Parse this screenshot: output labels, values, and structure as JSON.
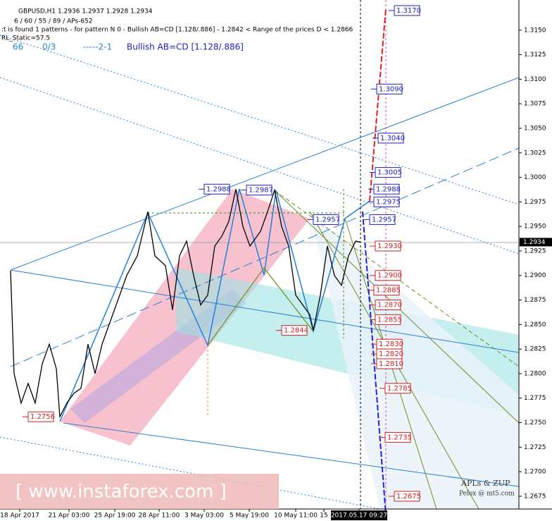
{
  "header": {
    "symbol_line": "GBPUSD,H1  1.2936 1.2937 1.2928 1.2934",
    "settings_line": "6 / 60 / 55 / 89 / APs-652",
    "pattern_line": ":t is found 1 patterns  -  for pattern N 0 - Bullish AB=CD [1.128/.886] - 1.2842 < Range of the prices D < 1.2866",
    "static_line": "RL_Static=57.5",
    "count": "66",
    "ratio": "0/3",
    "step": "-----2-1",
    "pattern_name": "Bullish AB=CD [1.128/.886]"
  },
  "watermark": "[ www.instaforex.com ]",
  "footer": {
    "brand": "APLs & ZUP",
    "credit": "Pelox @ mt5.com"
  },
  "chart_data": {
    "type": "line",
    "series": [
      {
        "name": "GBPUSD",
        "color": "#000000",
        "x": [
          15,
          20,
          30,
          40,
          50,
          60,
          70,
          80,
          85,
          95,
          105,
          115,
          125,
          135,
          145,
          160,
          170,
          180,
          195,
          210,
          220,
          235,
          245,
          255,
          265,
          275,
          285,
          295,
          305,
          315,
          325,
          335,
          345,
          355,
          370,
          380,
          390,
          400,
          410,
          420,
          430,
          440,
          445,
          455,
          465,
          475,
          485,
          495,
          505,
          512
        ],
        "values": [
          1.2905,
          1.28,
          1.277,
          1.279,
          1.277,
          1.281,
          1.283,
          1.2805,
          1.2756,
          1.277,
          1.278,
          1.2785,
          1.283,
          1.28,
          1.283,
          1.286,
          1.288,
          1.29,
          1.292,
          1.2965,
          1.292,
          1.291,
          1.2865,
          1.292,
          1.2935,
          1.29,
          1.287,
          1.288,
          1.293,
          1.294,
          1.2955,
          1.2988,
          1.295,
          1.293,
          1.2945,
          1.2965,
          1.2987,
          1.295,
          1.293,
          1.288,
          1.287,
          1.286,
          1.2844,
          1.288,
          1.293,
          1.29,
          1.289,
          1.292,
          1.2935,
          1.2934
        ]
      }
    ],
    "current_price": {
      "value": 1.2934,
      "label": "1.2934"
    },
    "xlim": [
      0,
      737
    ],
    "xticks": [
      {
        "value": 28,
        "label": "18 Apr 2017"
      },
      {
        "value": 98,
        "label": "21 Apr 03:00"
      },
      {
        "value": 163,
        "label": "25 Apr 19:00"
      },
      {
        "value": 226,
        "label": "28 Apr 11:00"
      },
      {
        "value": 290,
        "label": "3 May 03:00"
      },
      {
        "value": 354,
        "label": "5 May 19:00"
      },
      {
        "value": 420,
        "label": "10 May 11:00"
      },
      {
        "value": 460,
        "label": "15"
      },
      {
        "value": 510,
        "label": "2017.05.17 09:27"
      }
    ],
    "ylim": [
      1.2662,
      1.3175
    ],
    "yticks": [
      {
        "value": 1.2675,
        "label": "1.2675"
      },
      {
        "value": 1.27,
        "label": "1.2700"
      },
      {
        "value": 1.2725,
        "label": "1.2725"
      },
      {
        "value": 1.275,
        "label": "1.2750"
      },
      {
        "value": 1.2775,
        "label": "1.2775"
      },
      {
        "value": 1.28,
        "label": "1.2800"
      },
      {
        "value": 1.2825,
        "label": "1.2825"
      },
      {
        "value": 1.285,
        "label": "1.2850"
      },
      {
        "value": 1.2875,
        "label": "1.2875"
      },
      {
        "value": 1.29,
        "label": "1.2900"
      },
      {
        "value": 1.2925,
        "label": "1.2925"
      },
      {
        "value": 1.295,
        "label": "1.2950"
      },
      {
        "value": 1.2975,
        "label": "1.2975"
      },
      {
        "value": 1.3,
        "label": "1.3000"
      },
      {
        "value": 1.3025,
        "label": "1.3025"
      },
      {
        "value": 1.305,
        "label": "1.3050"
      },
      {
        "value": 1.3075,
        "label": "1.3075"
      },
      {
        "value": 1.31,
        "label": "1.3100"
      },
      {
        "value": 1.3125,
        "label": "1.3125"
      },
      {
        "value": 1.315,
        "label": "1.3150"
      }
    ],
    "levels": [
      {
        "value": 1.317,
        "label": "1.3170",
        "x": 560,
        "color": "#2020c0"
      },
      {
        "value": 1.309,
        "label": "1.3090",
        "x": 535,
        "color": "#2020c0"
      },
      {
        "value": 1.304,
        "label": "1.3040",
        "x": 537,
        "color": "#2020c0"
      },
      {
        "value": 1.3005,
        "label": "1.3005",
        "x": 533,
        "color": "#2020c0"
      },
      {
        "value": 1.2988,
        "label": "1.2988",
        "x": 531,
        "color": "#2020c0"
      },
      {
        "value": 1.2975,
        "label": "1.2975",
        "x": 531,
        "color": "#2020c0"
      },
      {
        "value": 1.2957,
        "label": "1.2957",
        "x": 525,
        "color": "#2020c0"
      },
      {
        "value": 1.293,
        "label": "1.2930",
        "x": 533,
        "color": "#d02020"
      },
      {
        "value": 1.29,
        "label": "1.2900",
        "x": 533,
        "color": "#d02020"
      },
      {
        "value": 1.2885,
        "label": "1.2885",
        "x": 531,
        "color": "#d02020"
      },
      {
        "value": 1.287,
        "label": "1.2870",
        "x": 533,
        "color": "#d02020"
      },
      {
        "value": 1.2855,
        "label": "1.2855",
        "x": 533,
        "color": "#d02020"
      },
      {
        "value": 1.283,
        "label": "1.2830",
        "x": 535,
        "color": "#d02020"
      },
      {
        "value": 1.282,
        "label": "1.2820",
        "x": 535,
        "color": "#d02020"
      },
      {
        "value": 1.281,
        "label": "1.2810",
        "x": 535,
        "color": "#d02020"
      },
      {
        "value": 1.2785,
        "label": "1.2785",
        "x": 547,
        "color": "#d02020"
      },
      {
        "value": 1.2735,
        "label": "1.2735",
        "x": 547,
        "color": "#d02020"
      },
      {
        "value": 1.2675,
        "label": "1.2675",
        "x": 560,
        "color": "#d02020"
      },
      {
        "value": 1.2988,
        "label": "1.2988",
        "x": 290,
        "color": "#2020c0"
      },
      {
        "value": 1.2987,
        "label": "1.2987",
        "x": 350,
        "color": "#2020c0"
      },
      {
        "value": 1.2957,
        "label": "1.2957",
        "x": 445,
        "color": "#2020c0"
      },
      {
        "value": 1.2844,
        "label": "1.2844",
        "x": 400,
        "color": "#d02020"
      },
      {
        "value": 1.2756,
        "label": "1.2756",
        "x": 40,
        "color": "#d02020"
      }
    ]
  }
}
